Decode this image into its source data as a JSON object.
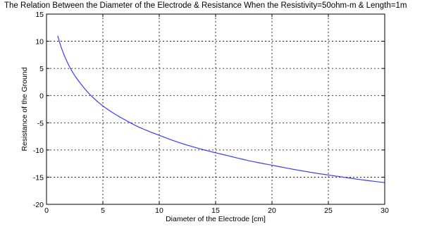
{
  "chart_data": {
    "type": "line",
    "title": "The Relation Between the Diameter of the Electrode & Resistance When the Resistivity=50ohm-m & Length=1m",
    "xlabel": "Diameter of the Electrode [cm]",
    "ylabel": "Resistance of the Ground",
    "xlim": [
      0,
      30
    ],
    "ylim": [
      -20,
      15
    ],
    "xticks": [
      0,
      5,
      10,
      15,
      20,
      25,
      30
    ],
    "yticks": [
      -20,
      -15,
      -10,
      -5,
      0,
      5,
      10,
      15
    ],
    "grid": true,
    "series": [
      {
        "color": "#3b3bff",
        "x": [
          1,
          1.5,
          2,
          2.5,
          3,
          3.5,
          4,
          5,
          6,
          7,
          8,
          9,
          10,
          12,
          14,
          16,
          18,
          20,
          22,
          24,
          26,
          28,
          30
        ],
        "y": [
          11.0,
          7.8,
          5.5,
          3.7,
          2.3,
          1.0,
          -0.1,
          -1.9,
          -3.3,
          -4.5,
          -5.6,
          -6.5,
          -7.3,
          -8.8,
          -10.0,
          -11.0,
          -12.0,
          -12.8,
          -13.6,
          -14.3,
          -14.9,
          -15.5,
          -16.0
        ]
      }
    ]
  }
}
